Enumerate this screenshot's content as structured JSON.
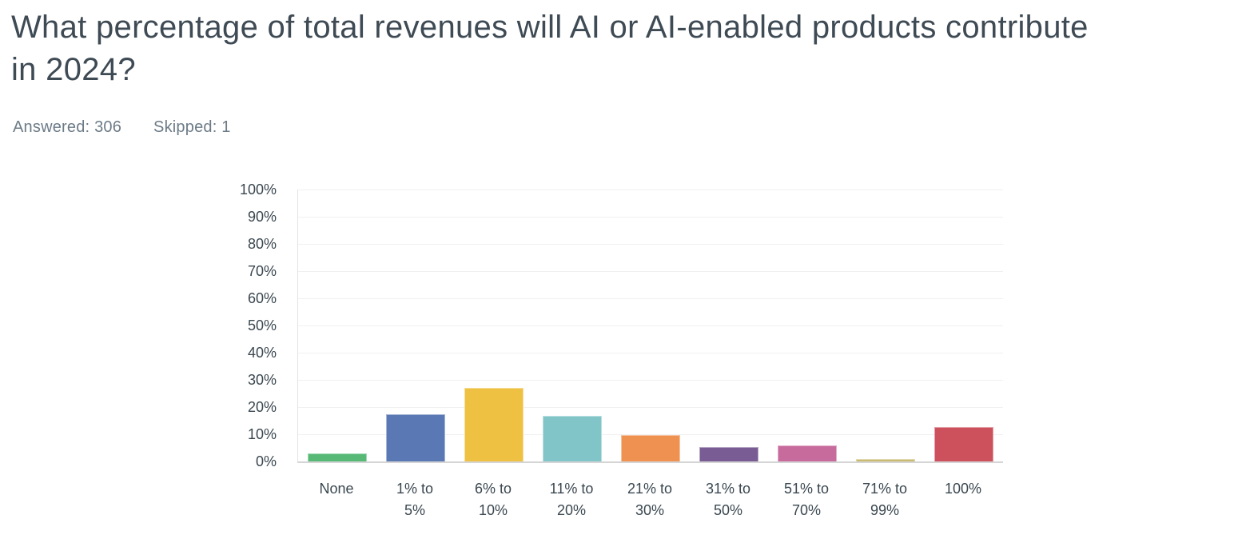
{
  "header": {
    "title": "What percentage of total revenues will AI or AI-enabled products contribute in 2024?",
    "title_lines": [
      "What percentage of total revenues will AI or AI-enabled products contribute",
      "in 2024?"
    ],
    "answered_label": "Answered:",
    "answered_value": "306",
    "skipped_label": "Skipped:",
    "skipped_value": "1"
  },
  "chart_data": {
    "type": "bar",
    "title": "",
    "xlabel": "",
    "ylabel": "",
    "categories": [
      "None",
      "1% to 5%",
      "6% to 10%",
      "11% to 20%",
      "21% to 30%",
      "31% to 50%",
      "51% to 70%",
      "71% to 99%",
      "100%"
    ],
    "category_label_lines": [
      [
        "None"
      ],
      [
        "1% to",
        "5%"
      ],
      [
        "6% to",
        "10%"
      ],
      [
        "11% to",
        "20%"
      ],
      [
        "21% to",
        "30%"
      ],
      [
        "31% to",
        "50%"
      ],
      [
        "51% to",
        "70%"
      ],
      [
        "71% to",
        "99%"
      ],
      [
        "100%"
      ]
    ],
    "values": [
      3.0,
      17.3,
      27.1,
      16.7,
      9.8,
      5.2,
      5.9,
      1.0,
      12.7
    ],
    "unit": "%",
    "bar_colors": [
      "#57B975",
      "#5A79B4",
      "#EFC143",
      "#82C5C9",
      "#EF9251",
      "#785C93",
      "#C76B9D",
      "#C9BC72",
      "#CC515C"
    ],
    "y_ticks": [
      "0%",
      "10%",
      "20%",
      "30%",
      "40%",
      "50%",
      "60%",
      "70%",
      "80%",
      "90%",
      "100%"
    ],
    "ylim": [
      0,
      100
    ],
    "grid": "horizontal",
    "legend": "none"
  },
  "colors": {
    "title_text": "#3E4A54",
    "stats_text": "#6C7B87",
    "axis_text": "#3A4750",
    "gridline": "#F0F0F0",
    "axis_line": "#E3E3E3",
    "baseline": "#D5D5D5",
    "background": "#FFFFFF"
  }
}
